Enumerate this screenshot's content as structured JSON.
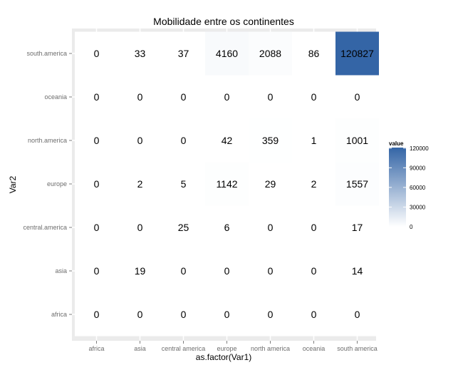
{
  "chart_data": {
    "type": "heatmap",
    "title": "Mobilidade entre os continentes",
    "xlabel": "as.factor(Var1)",
    "ylabel": "Var2",
    "x_categories": [
      "africa",
      "asia",
      "central america",
      "europe",
      "north america",
      "oceania",
      "south america"
    ],
    "y_categories": [
      "africa",
      "asia",
      "central.america",
      "europe",
      "north.america",
      "oceania",
      "south.america"
    ],
    "values": [
      [
        0,
        0,
        0,
        0,
        0,
        0,
        0
      ],
      [
        0,
        19,
        0,
        0,
        0,
        0,
        14
      ],
      [
        0,
        0,
        25,
        6,
        0,
        0,
        17
      ],
      [
        0,
        2,
        5,
        1142,
        29,
        2,
        1557
      ],
      [
        0,
        0,
        0,
        42,
        359,
        1,
        1001
      ],
      [
        0,
        0,
        0,
        0,
        0,
        0,
        0
      ],
      [
        0,
        33,
        37,
        4160,
        2088,
        86,
        120827
      ]
    ],
    "legend": {
      "title": "value",
      "ticks": [
        0,
        30000,
        60000,
        90000,
        120000
      ],
      "min": 0,
      "max": 120827,
      "color_low": "#ffffff",
      "color_high": "#3465a6",
      "placement": "right"
    },
    "grid": true,
    "panel_background": "#ebebeb"
  }
}
